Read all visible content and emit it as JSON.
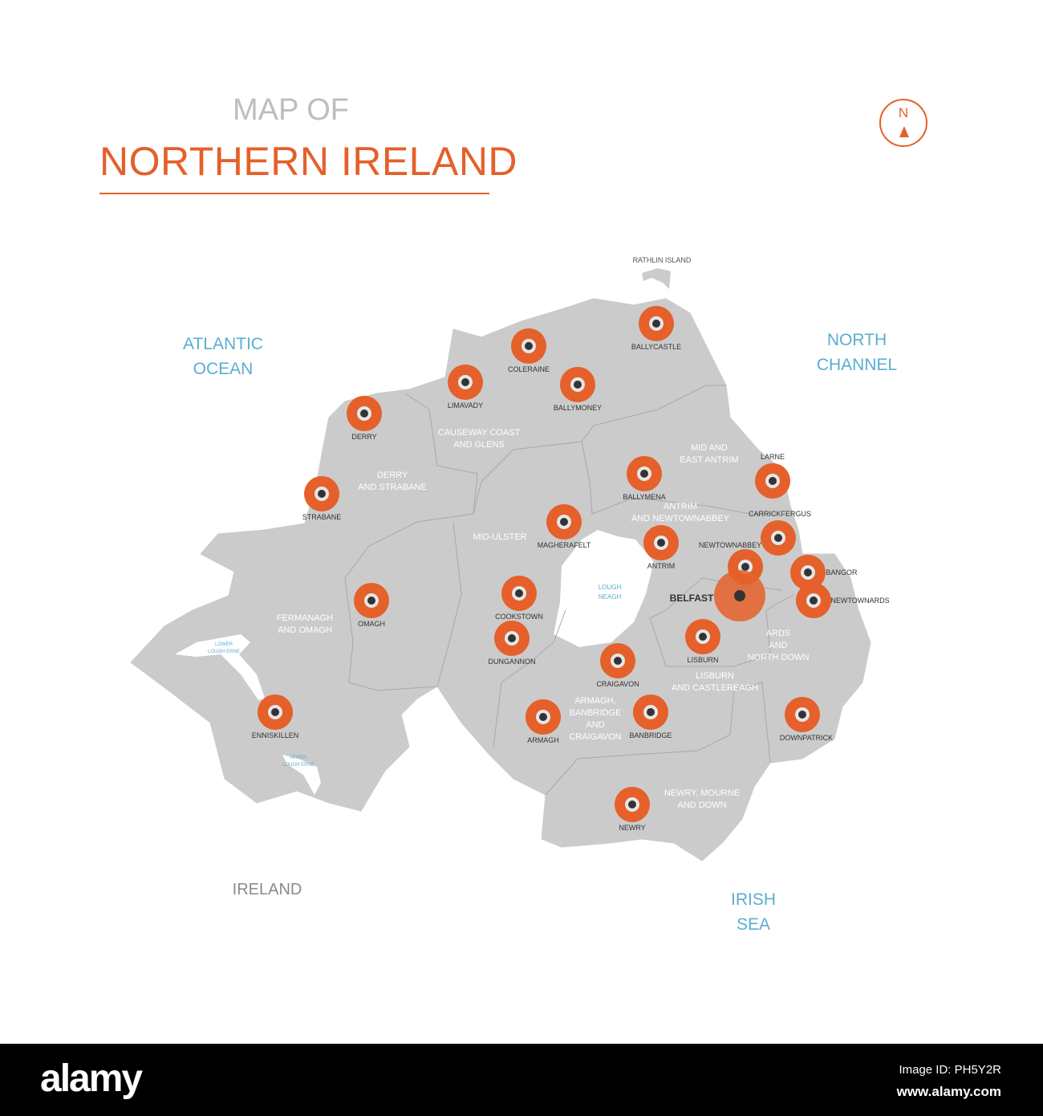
{
  "header": {
    "subtitle": "MAP OF",
    "title": "NORTHERN IRELAND"
  },
  "compass": {
    "label": "N",
    "icon": "north-arrow-icon"
  },
  "colors": {
    "accent": "#e5602a",
    "land": "#cbcbcb",
    "water_label": "#5aaed0",
    "region_label": "#ffffff",
    "city_label": "#333333"
  },
  "water_labels": [
    {
      "id": "atlantic",
      "lines": [
        "ATLANTIC",
        "OCEAN"
      ]
    },
    {
      "id": "north-channel",
      "lines": [
        "NORTH",
        "CHANNEL"
      ]
    },
    {
      "id": "irish-sea",
      "lines": [
        "IRISH",
        "SEA"
      ]
    },
    {
      "id": "lough-neagh",
      "lines": [
        "LOUGH",
        "NEAGH"
      ]
    },
    {
      "id": "lower-lough-erne",
      "lines": [
        "LOWER",
        "LOUGH ERNE"
      ]
    },
    {
      "id": "upper-lough-erne",
      "lines": [
        "UPPER",
        "LOUGH ERNE"
      ]
    }
  ],
  "land_labels": [
    {
      "id": "ireland",
      "text": "IRELAND"
    },
    {
      "id": "rathlin",
      "text": "RATHLIN ISLAND"
    }
  ],
  "regions": [
    {
      "id": "causeway",
      "lines": [
        "CAUSEWAY COAST",
        "AND GLENS"
      ]
    },
    {
      "id": "derry-strabane",
      "lines": [
        "DERRY",
        "AND STRABANE"
      ]
    },
    {
      "id": "mid-east-antrim",
      "lines": [
        "MID AND",
        "EAST ANTRIM"
      ]
    },
    {
      "id": "antrim-newtownabbey",
      "lines": [
        "ANTRIM",
        "AND NEWTOWNABBEY"
      ]
    },
    {
      "id": "mid-ulster",
      "lines": [
        "MID-ULSTER"
      ]
    },
    {
      "id": "fermanagh-omagh",
      "lines": [
        "FERMANAGH",
        "AND OMAGH"
      ]
    },
    {
      "id": "ards",
      "lines": [
        "ARDS",
        "AND",
        "NORTH DOWN"
      ]
    },
    {
      "id": "lisburn-castlereagh",
      "lines": [
        "LISBURN",
        "AND CASTLEREAGH"
      ]
    },
    {
      "id": "abc",
      "lines": [
        "ARMAGH,",
        "BANBRIDGE",
        "AND",
        "CRAIGAVON"
      ]
    },
    {
      "id": "newry-mourne",
      "lines": [
        "NEWRY, MOURNE",
        "AND DOWN"
      ]
    }
  ],
  "cities": [
    {
      "name": "BALLYCASTLE"
    },
    {
      "name": "COLERAINE"
    },
    {
      "name": "LIMAVADY"
    },
    {
      "name": "BALLYMONEY"
    },
    {
      "name": "DERRY"
    },
    {
      "name": "STRABANE"
    },
    {
      "name": "BALLYMENA"
    },
    {
      "name": "LARNE"
    },
    {
      "name": "MAGHERAFELT"
    },
    {
      "name": "CARRICKFERGUS"
    },
    {
      "name": "ANTRIM"
    },
    {
      "name": "NEWTOWNABBEY"
    },
    {
      "name": "BANGOR"
    },
    {
      "name": "BELFAST",
      "capital": true
    },
    {
      "name": "NEWTOWNARDS"
    },
    {
      "name": "OMAGH"
    },
    {
      "name": "COOKSTOWN"
    },
    {
      "name": "LISBURN"
    },
    {
      "name": "DUNGANNON"
    },
    {
      "name": "CRAIGAVON"
    },
    {
      "name": "ENNISKILLEN"
    },
    {
      "name": "ARMAGH"
    },
    {
      "name": "BANBRIDGE"
    },
    {
      "name": "DOWNPATRICK"
    },
    {
      "name": "NEWRY"
    }
  ],
  "footer": {
    "logo": "alamy",
    "image_id": "Image ID: PH5Y2R",
    "url": "www.alamy.com"
  }
}
